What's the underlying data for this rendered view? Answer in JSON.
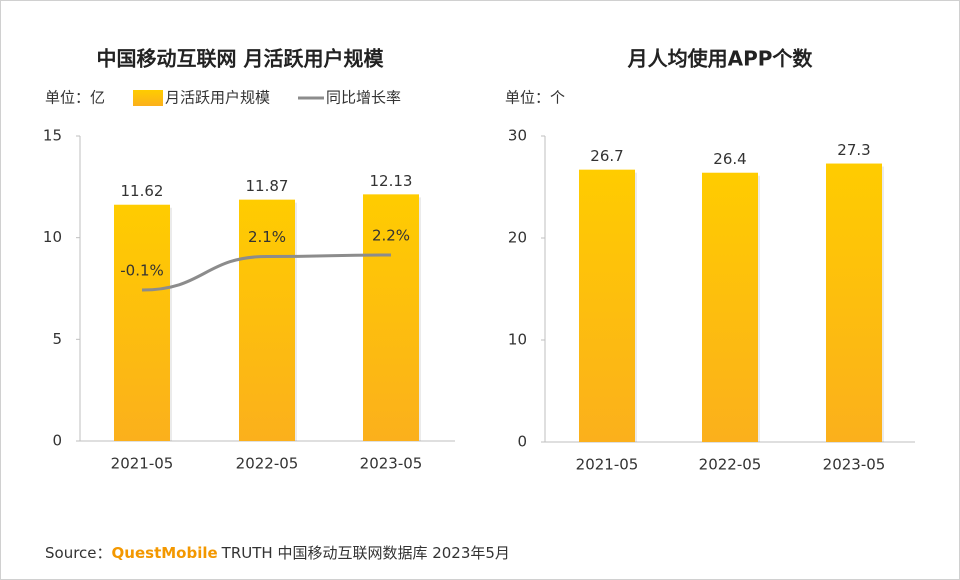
{
  "chart_data": [
    {
      "type": "bar_line",
      "title": "中国移动互联网 月活跃用户规模",
      "unit": "单位：亿",
      "categories": [
        "2021-05",
        "2022-05",
        "2023-05"
      ],
      "series": [
        {
          "name": "月活跃用户规模",
          "type": "bar",
          "color": "#ffc300",
          "values": [
            11.62,
            11.87,
            12.13
          ]
        },
        {
          "name": "同比增长率",
          "type": "line",
          "axis": "y2",
          "color": "#8c8c8c",
          "values": [
            -0.1,
            2.1,
            2.2
          ],
          "value_labels": [
            "-0.1%",
            "2.1%",
            "2.2%"
          ]
        }
      ],
      "ylim": [
        0,
        15
      ],
      "yticks": [
        0,
        5,
        10,
        15
      ],
      "y2lim": [
        -10,
        10
      ]
    },
    {
      "type": "bar",
      "title": "月人均使用APP个数",
      "unit": "单位：个",
      "categories": [
        "2021-05",
        "2022-05",
        "2023-05"
      ],
      "series": [
        {
          "name": "月人均使用APP个数",
          "type": "bar",
          "color": "#ffc300",
          "values": [
            26.7,
            26.4,
            27.3
          ]
        }
      ],
      "ylim": [
        0,
        30
      ],
      "yticks": [
        0,
        10,
        20,
        30
      ]
    }
  ],
  "source": {
    "label": "Source：",
    "brand": "QuestMobile",
    "text": "TRUTH 中国移动互联网数据库 2023年5月"
  }
}
